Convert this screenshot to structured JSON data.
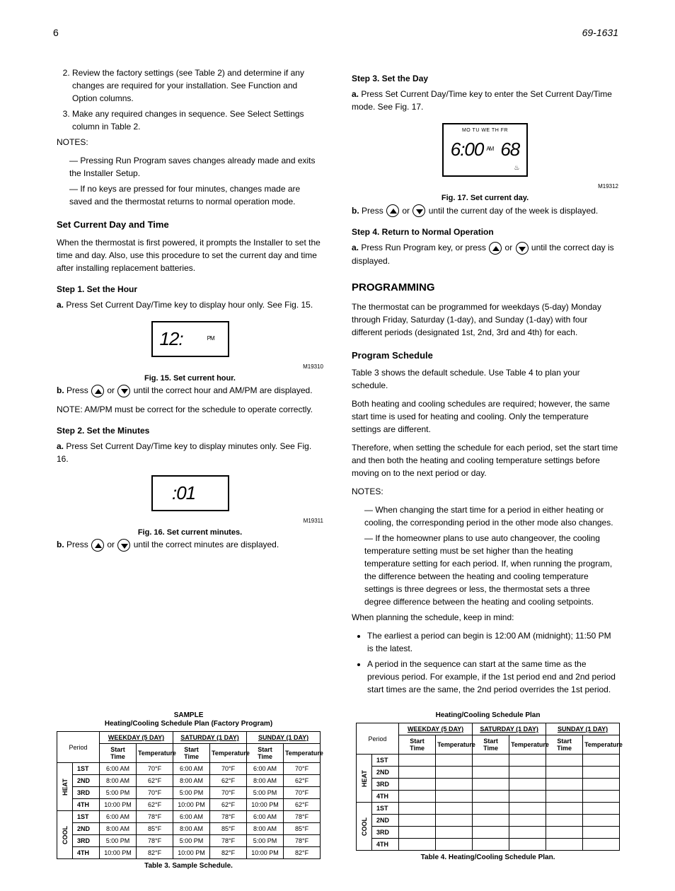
{
  "page_number": "6",
  "model": "69-1631",
  "left": {
    "intro_list": [
      "Review the factory settings (see Table 2) and determine if any changes are required for your installation. See Function and Option columns.",
      "Make any required changes in sequence. See Select Settings column in Table 2."
    ],
    "note_label": "NOTES:",
    "notes": [
      "Pressing Run Program saves changes already made and exits the Installer Setup.",
      "If no keys are pressed for four minutes, changes made are saved and the thermostat returns to normal operation mode."
    ],
    "set_day_time_heading": "Set Current Day and Time",
    "set_day_time_intro": "When the thermostat is first powered, it prompts the Installer to set the time and day. Also, use this procedure to set the current day and time after installing replacement batteries.",
    "step1_heading": "Step 1. Set the Hour",
    "step1_a": "Press Set Current Day/Time key to display hour only. See Fig. 15.",
    "fig15_caption": "Fig. 15. Set current hour.",
    "step1_b_prefix": "Press ",
    "step1_b_mid": " or ",
    "step1_b_suffix": " until the correct hour and AM/PM are displayed.",
    "note2_label": "NOTE:",
    "note2_text": "AM/PM must be correct for the schedule to operate correctly.",
    "step2_heading": "Step 2. Set the Minutes",
    "step2_a": "Press Set Current Day/Time key to display minutes only. See Fig. 16.",
    "fig16_caption": "Fig. 16. Set current minutes.",
    "step2_b_prefix": "Press ",
    "step2_b_mid": " or ",
    "step2_b_suffix": " until the correct minutes are displayed.",
    "lcd_hour": "12:",
    "lcd_hour_pm": "PM",
    "lcd_min": ":01"
  },
  "right": {
    "lcd_days": "MO TU WE TH FR",
    "lcd_time": "6:00",
    "lcd_am": "AM",
    "lcd_temp": "68",
    "fig17_caption": "Fig. 17. Set current day.",
    "step3_heading": "Step 3. Set the Day",
    "step3_a": "Press Set Current Day/Time key to enter the Set Current Day/Time mode. See Fig. 17.",
    "step3_b_prefix": "Press ",
    "step3_b_mid": " or ",
    "step3_b_suffix": " until the current day of the week is displayed.",
    "step4_heading": "Step 4. Return to Normal Operation",
    "step4_a_prefix": "Press Run Program key, or press ",
    "step4_a_mid": " or ",
    "step4_a_suffix": " until the correct day is displayed.",
    "programming_heading": "PROGRAMMING",
    "prog_intro": "The thermostat can be programmed for weekdays (5-day) Monday through Friday, Saturday (1-day), and Sunday (1-day) with four different periods (designated 1st, 2nd, 3rd and 4th) for each.",
    "program_schedule_heading": "Program Schedule",
    "ps_p1": "Table 3 shows the default schedule. Use Table 4 to plan your schedule.",
    "ps_p2": "Both heating and cooling schedules are required; however, the same start time is used for heating and cooling. Only the temperature settings are different.",
    "ps_p3": "Therefore, when setting the schedule for each period, set the start time and then both the heating and cooling temperature settings before moving on to the next period or day.",
    "note3_label": "NOTES:",
    "notes3": [
      "When changing the start time for a period in either heating or cooling, the corresponding period in the other mode also changes.",
      "If the homeowner plans to use auto changeover, the cooling temperature setting must be set higher than the heating temperature setting for each period. If, when running the program, the difference between the heating and cooling temperature settings is three degrees or less, the thermostat sets a three degree difference between the heating and cooling setpoints."
    ],
    "ps_p4": "When planning the schedule, keep in mind:",
    "bullets": [
      "The earliest a period can begin is 12:00 AM (midnight); 11:50 PM is the latest.",
      "A period in the sequence can start at the same time as the previous period. For example, if the 1st period end and 2nd period start times are the same, the 2nd period overrides the 1st period."
    ]
  },
  "table3": {
    "title_line1": "SAMPLE",
    "title_line2": "Heating/Cooling Schedule Plan (Factory Program)",
    "group_heads": [
      "WEEKDAY (5 DAY)",
      "SATURDAY (1 DAY)",
      "SUNDAY (1 DAY)"
    ],
    "sub_heads": [
      "Start\nTime",
      "Temperature"
    ],
    "period_label": "Period",
    "side_labels": [
      "HEAT",
      "COOL"
    ],
    "periods": [
      "1ST",
      "2ND",
      "3RD",
      "4TH"
    ],
    "rows": [
      [
        "6:00 AM",
        "70°F",
        "6:00 AM",
        "70°F",
        "6:00 AM",
        "70°F"
      ],
      [
        "8:00 AM",
        "62°F",
        "8:00 AM",
        "62°F",
        "8:00 AM",
        "62°F"
      ],
      [
        "5:00 PM",
        "70°F",
        "5:00 PM",
        "70°F",
        "5:00 PM",
        "70°F"
      ],
      [
        "10:00 PM",
        "62°F",
        "10:00 PM",
        "62°F",
        "10:00 PM",
        "62°F"
      ],
      [
        "6:00 AM",
        "78°F",
        "6:00 AM",
        "78°F",
        "6:00 AM",
        "78°F"
      ],
      [
        "8:00 AM",
        "85°F",
        "8:00 AM",
        "85°F",
        "8:00 AM",
        "85°F"
      ],
      [
        "5:00 PM",
        "78°F",
        "5:00 PM",
        "78°F",
        "5:00 PM",
        "78°F"
      ],
      [
        "10:00 PM",
        "82°F",
        "10:00 PM",
        "82°F",
        "10:00 PM",
        "82°F"
      ]
    ],
    "caption": "Table 3. Sample Schedule."
  },
  "table4": {
    "title": "Heating/Cooling Schedule Plan",
    "caption": "Table 4. Heating/Cooling Schedule Plan."
  }
}
